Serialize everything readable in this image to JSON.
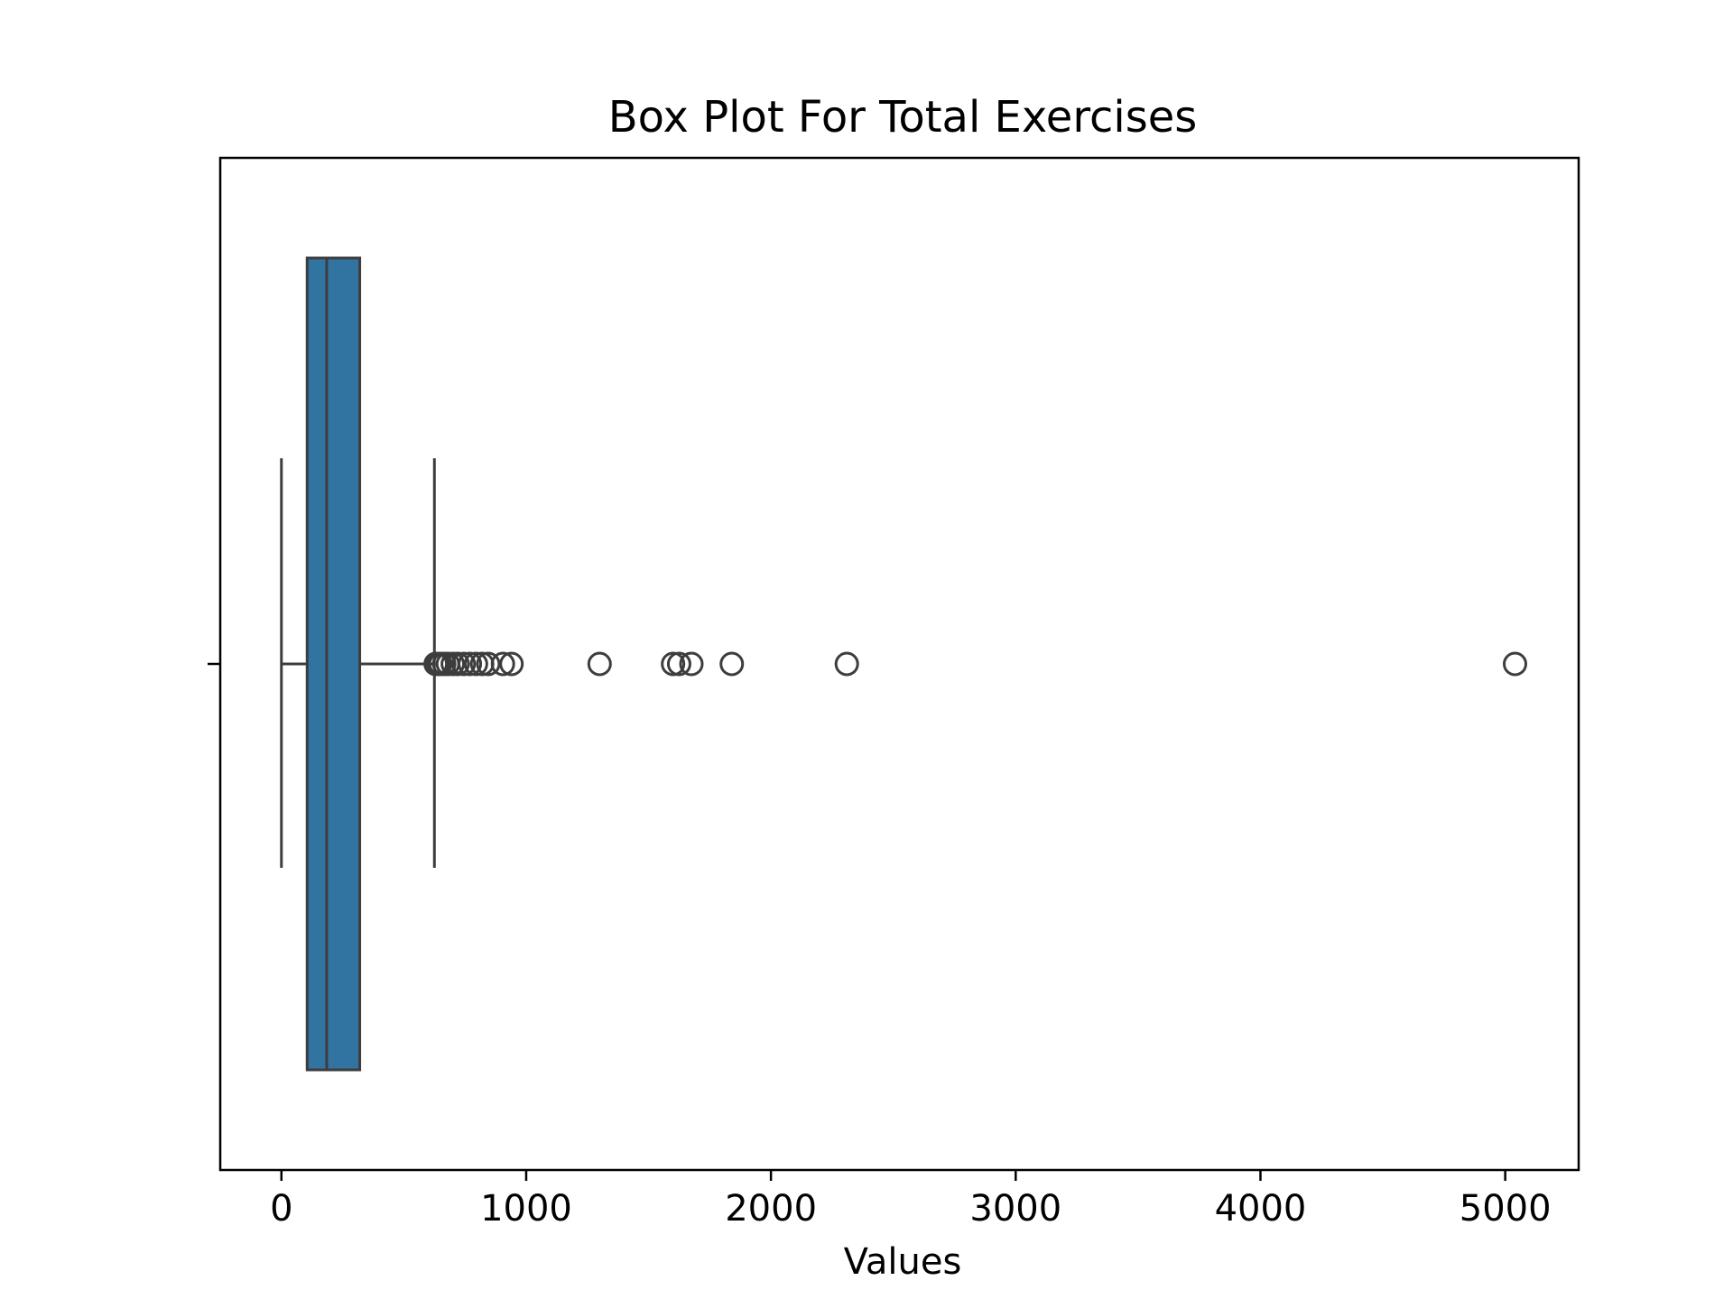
{
  "chart_data": {
    "type": "box",
    "orientation": "horizontal",
    "title": "Box Plot For Total Exercises",
    "xlabel": "Values",
    "ylabel": "",
    "xlim": [
      -250,
      5300
    ],
    "xticks": [
      0,
      1000,
      2000,
      3000,
      4000,
      5000
    ],
    "xtick_labels": [
      "0",
      "1000",
      "2000",
      "3000",
      "4000",
      "5000"
    ],
    "grid": false,
    "box": {
      "whisker_low": 0,
      "q1": 105,
      "median": 185,
      "q3": 320,
      "whisker_high": 625
    },
    "outliers": [
      630,
      640,
      650,
      665,
      680,
      700,
      720,
      745,
      770,
      795,
      820,
      845,
      905,
      940,
      1300,
      1600,
      1625,
      1675,
      1840,
      2310,
      5040
    ],
    "colors": {
      "box_fill": "#3274a1",
      "line": "#3d3d3d",
      "axes": "#000000",
      "background": "#ffffff"
    }
  }
}
